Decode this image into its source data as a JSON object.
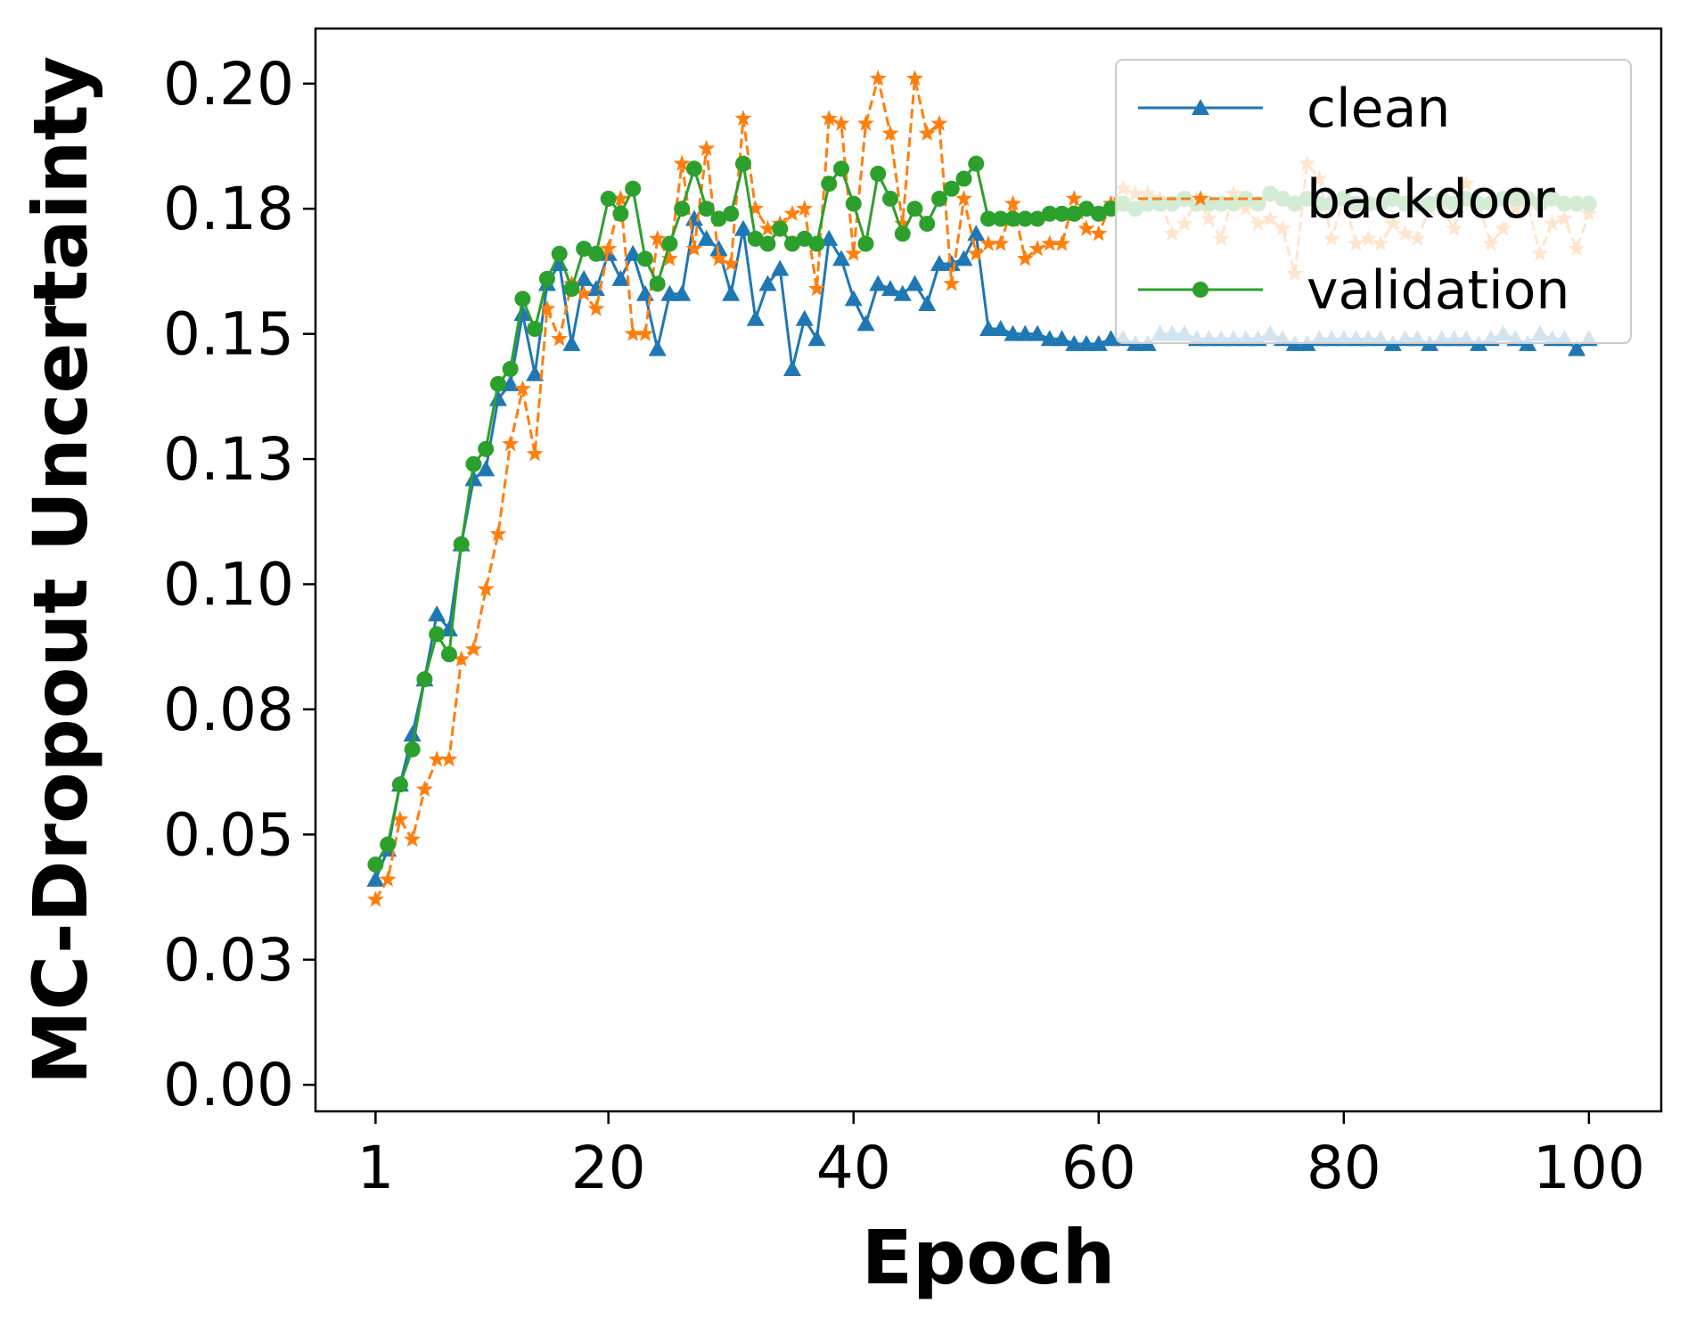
{
  "chart_data": {
    "type": "line",
    "xlabel": "Epoch",
    "ylabel": "MC-Dropout Uncertainty",
    "xlim": [
      -3.9,
      105.9
    ],
    "ylim": [
      -0.0053,
      0.211
    ],
    "xticks": [
      1,
      20,
      40,
      60,
      80,
      100
    ],
    "xtick_labels": [
      "1",
      "20",
      "40",
      "60",
      "80",
      "100"
    ],
    "yticks": [
      0.0,
      0.025,
      0.05,
      0.075,
      0.1,
      0.125,
      0.15,
      0.175,
      0.2
    ],
    "ytick_labels": [
      "0.00",
      "0.03",
      "0.05",
      "0.08",
      "0.10",
      "0.13",
      "0.15",
      "0.18",
      "0.20"
    ],
    "grid": false,
    "legend_position": "top-right",
    "x": [
      1,
      2,
      3,
      4,
      5,
      6,
      7,
      8,
      9,
      10,
      11,
      12,
      13,
      14,
      15,
      16,
      17,
      18,
      19,
      20,
      21,
      22,
      23,
      24,
      25,
      26,
      27,
      28,
      29,
      30,
      31,
      32,
      33,
      34,
      35,
      36,
      37,
      38,
      39,
      40,
      41,
      42,
      43,
      44,
      45,
      46,
      47,
      48,
      49,
      50,
      51,
      52,
      53,
      54,
      55,
      56,
      57,
      58,
      59,
      60,
      61,
      62,
      63,
      64,
      65,
      66,
      67,
      68,
      69,
      70,
      71,
      72,
      73,
      74,
      75,
      76,
      77,
      78,
      79,
      80,
      81,
      82,
      83,
      84,
      85,
      86,
      87,
      88,
      89,
      90,
      91,
      92,
      93,
      94,
      95,
      96,
      97,
      98,
      99,
      100
    ],
    "series": [
      {
        "name": "clean",
        "color": "#1f77b4",
        "marker": "triangle",
        "linestyle": "solid",
        "values": [
          0.041,
          0.047,
          0.06,
          0.07,
          0.081,
          0.094,
          0.091,
          0.108,
          0.121,
          0.123,
          0.137,
          0.14,
          0.154,
          0.142,
          0.16,
          0.164,
          0.148,
          0.161,
          0.159,
          0.166,
          0.161,
          0.166,
          0.158,
          0.147,
          0.158,
          0.158,
          0.173,
          0.169,
          0.167,
          0.158,
          0.171,
          0.153,
          0.16,
          0.163,
          0.143,
          0.153,
          0.149,
          0.169,
          0.165,
          0.157,
          0.152,
          0.16,
          0.159,
          0.158,
          0.16,
          0.156,
          0.164,
          0.164,
          0.165,
          0.17,
          0.151,
          0.151,
          0.15,
          0.15,
          0.15,
          0.149,
          0.149,
          0.148,
          0.148,
          0.148,
          0.149,
          0.149,
          0.148,
          0.148,
          0.15,
          0.15,
          0.15,
          0.149,
          0.149,
          0.149,
          0.149,
          0.149,
          0.149,
          0.15,
          0.149,
          0.148,
          0.148,
          0.149,
          0.149,
          0.149,
          0.149,
          0.149,
          0.149,
          0.148,
          0.149,
          0.149,
          0.148,
          0.149,
          0.149,
          0.149,
          0.148,
          0.149,
          0.15,
          0.149,
          0.148,
          0.15,
          0.149,
          0.149,
          0.147,
          0.149
        ]
      },
      {
        "name": "backdoor",
        "color": "#ff7f0e",
        "marker": "star",
        "linestyle": "dashed",
        "values": [
          0.037,
          0.041,
          0.053,
          0.049,
          0.059,
          0.065,
          0.065,
          0.085,
          0.087,
          0.099,
          0.11,
          0.128,
          0.139,
          0.126,
          0.155,
          0.149,
          0.16,
          0.158,
          0.155,
          0.167,
          0.177,
          0.15,
          0.15,
          0.169,
          0.165,
          0.184,
          0.167,
          0.187,
          0.165,
          0.164,
          0.193,
          0.175,
          0.171,
          0.172,
          0.174,
          0.175,
          0.159,
          0.193,
          0.192,
          0.166,
          0.192,
          0.201,
          0.19,
          0.172,
          0.201,
          0.19,
          0.192,
          0.16,
          0.177,
          0.166,
          0.168,
          0.168,
          0.176,
          0.165,
          0.167,
          0.168,
          0.168,
          0.177,
          0.171,
          0.17,
          0.176,
          0.179,
          0.178,
          0.178,
          0.177,
          0.17,
          0.172,
          0.177,
          0.173,
          0.169,
          0.178,
          0.175,
          0.172,
          0.173,
          0.171,
          0.162,
          0.184,
          0.181,
          0.169,
          0.177,
          0.168,
          0.169,
          0.168,
          0.172,
          0.17,
          0.169,
          0.175,
          0.175,
          0.171,
          0.18,
          0.176,
          0.168,
          0.171,
          0.175,
          0.176,
          0.166,
          0.172,
          0.173,
          0.167,
          0.174
        ]
      },
      {
        "name": "validation",
        "color": "#2ca02c",
        "marker": "circle",
        "linestyle": "solid",
        "values": [
          0.044,
          0.048,
          0.06,
          0.067,
          0.081,
          0.09,
          0.086,
          0.108,
          0.124,
          0.127,
          0.14,
          0.143,
          0.157,
          0.151,
          0.161,
          0.166,
          0.159,
          0.167,
          0.166,
          0.177,
          0.174,
          0.179,
          0.165,
          0.16,
          0.168,
          0.175,
          0.183,
          0.175,
          0.173,
          0.174,
          0.184,
          0.169,
          0.168,
          0.171,
          0.168,
          0.169,
          0.168,
          0.18,
          0.183,
          0.176,
          0.168,
          0.182,
          0.177,
          0.17,
          0.175,
          0.172,
          0.177,
          0.179,
          0.181,
          0.184,
          0.173,
          0.173,
          0.173,
          0.173,
          0.173,
          0.174,
          0.174,
          0.174,
          0.175,
          0.174,
          0.175,
          0.176,
          0.175,
          0.176,
          0.176,
          0.176,
          0.177,
          0.176,
          0.176,
          0.176,
          0.176,
          0.177,
          0.176,
          0.178,
          0.177,
          0.176,
          0.177,
          0.176,
          0.176,
          0.177,
          0.176,
          0.176,
          0.176,
          0.177,
          0.176,
          0.176,
          0.176,
          0.177,
          0.176,
          0.177,
          0.176,
          0.176,
          0.177,
          0.177,
          0.177,
          0.176,
          0.177,
          0.176,
          0.176,
          0.176
        ]
      }
    ]
  }
}
